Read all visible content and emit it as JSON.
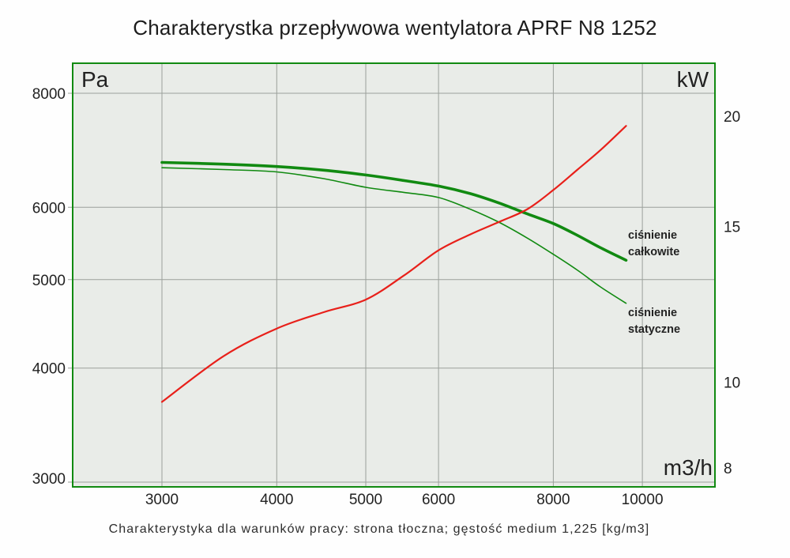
{
  "page": {
    "title": "Charakterystka przepływowa wentylatora APRF N8 1252",
    "caption": "Charakterystyka dla warunków pracy: strona tłoczna; gęstość medium 1,225 [kg/m3]"
  },
  "chart_data": {
    "type": "line",
    "title": "Charakterystka przepływowa wentylatora APRF N8 1252",
    "caption": "Charakterystyka dla warunków pracy: strona tłoczna; gęstość medium 1,225 [kg/m3]",
    "grid": true,
    "legend_position": "labels-at-curve-ends",
    "x_axis": {
      "unit": "m3/h",
      "scale": "log",
      "ticks": [
        3000,
        4000,
        5000,
        6000,
        8000,
        10000
      ],
      "range": [
        2400,
        12000
      ]
    },
    "y_left_axis": {
      "unit": "Pa",
      "scale": "log",
      "ticks": [
        8000,
        6000,
        5000,
        4000,
        3000
      ],
      "range": [
        2965,
        8630
      ]
    },
    "y_right_axis": {
      "unit": "kW",
      "scale": "log",
      "ticks": [
        20,
        15,
        10,
        8
      ],
      "range": [
        7.6,
        23
      ]
    },
    "series": [
      {
        "id": "cisnienie-calkowite",
        "name": "ciśnienie całkowite",
        "label_lines": [
          "ciśnienie",
          "całkowite"
        ],
        "axis": "left",
        "color": "#118a11",
        "width": 3.6,
        "x": [
          3000,
          3500,
          4000,
          4500,
          5000,
          5500,
          6000,
          6500,
          7000,
          7500,
          8000,
          8500,
          9000,
          9600
        ],
        "y": [
          6720,
          6690,
          6650,
          6590,
          6510,
          6420,
          6330,
          6210,
          6060,
          5900,
          5760,
          5590,
          5420,
          5250
        ]
      },
      {
        "id": "cisnienie-statyczne",
        "name": "ciśnienie statyczne",
        "label_lines": [
          "ciśnienie",
          "statyczne"
        ],
        "axis": "left",
        "color": "#118a11",
        "width": 1.6,
        "x": [
          3000,
          3500,
          4000,
          4500,
          5000,
          5500,
          6000,
          6500,
          7000,
          7500,
          8000,
          8500,
          9000,
          9600
        ],
        "y": [
          6630,
          6600,
          6560,
          6450,
          6310,
          6230,
          6150,
          5970,
          5770,
          5550,
          5330,
          5120,
          4910,
          4710
        ]
      },
      {
        "id": "moc-kw",
        "name": "kW",
        "axis": "right",
        "color": "#e8201a",
        "width": 2.2,
        "x": [
          3000,
          3500,
          4000,
          4500,
          5000,
          5500,
          6000,
          6500,
          7000,
          7500,
          8000,
          8500,
          9000,
          9600
        ],
        "y": [
          9.5,
          10.7,
          11.5,
          12.0,
          12.4,
          13.2,
          14.1,
          14.7,
          15.2,
          15.7,
          16.5,
          17.4,
          18.3,
          19.5
        ]
      }
    ],
    "colors": {
      "plot_bg": "#e9ece8",
      "grid": "#9ba09b",
      "border": "#118a11",
      "text": "#222222"
    }
  }
}
